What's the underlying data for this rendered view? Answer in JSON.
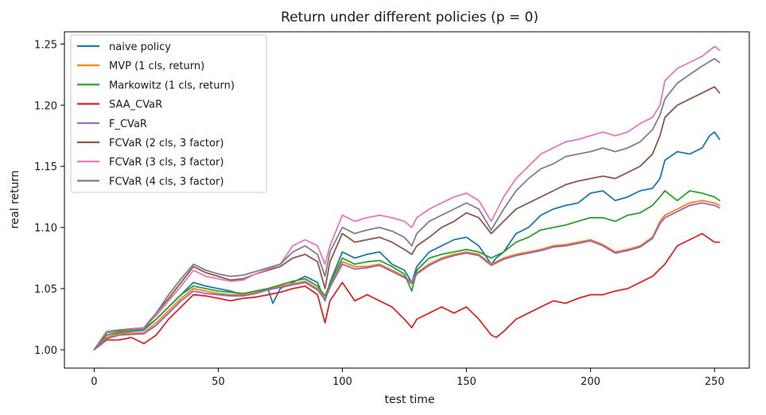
{
  "chart_data": {
    "type": "line",
    "title": "Return under different policies (p = 0)",
    "xlabel": "test time",
    "ylabel": "real return",
    "xlim": [
      -12,
      264
    ],
    "ylim": [
      0.985,
      1.26
    ],
    "xticks": [
      0,
      50,
      100,
      150,
      200,
      250
    ],
    "yticks": [
      1.0,
      1.05,
      1.1,
      1.15,
      1.2,
      1.25
    ],
    "ytick_labels": [
      "1.00",
      "1.05",
      "1.10",
      "1.15",
      "1.20",
      "1.25"
    ],
    "legend_position": "top-left",
    "grid": false,
    "series": [
      {
        "name": "naive policy",
        "color": "#1f77b4",
        "x": [
          0,
          5,
          10,
          20,
          25,
          30,
          35,
          40,
          45,
          50,
          55,
          60,
          65,
          70,
          72,
          75,
          80,
          85,
          90,
          93,
          95,
          100,
          105,
          110,
          115,
          120,
          125,
          128,
          130,
          135,
          140,
          145,
          150,
          155,
          160,
          162,
          165,
          170,
          175,
          180,
          185,
          190,
          195,
          200,
          205,
          210,
          215,
          220,
          225,
          228,
          230,
          235,
          240,
          245,
          248,
          250,
          252
        ],
        "y": [
          1.0,
          1.012,
          1.014,
          1.016,
          1.025,
          1.035,
          1.045,
          1.055,
          1.052,
          1.05,
          1.048,
          1.045,
          1.048,
          1.05,
          1.038,
          1.05,
          1.055,
          1.06,
          1.055,
          1.04,
          1.055,
          1.08,
          1.075,
          1.078,
          1.08,
          1.07,
          1.065,
          1.055,
          1.068,
          1.08,
          1.085,
          1.09,
          1.092,
          1.085,
          1.07,
          1.075,
          1.08,
          1.095,
          1.1,
          1.11,
          1.115,
          1.118,
          1.12,
          1.128,
          1.13,
          1.122,
          1.125,
          1.13,
          1.132,
          1.14,
          1.155,
          1.162,
          1.16,
          1.165,
          1.175,
          1.178,
          1.172
        ]
      },
      {
        "name": "MVP (1 cls, return)",
        "color": "#ff7f0e",
        "x": [
          0,
          5,
          10,
          20,
          25,
          30,
          35,
          40,
          45,
          50,
          55,
          60,
          65,
          70,
          75,
          80,
          85,
          90,
          93,
          95,
          100,
          105,
          110,
          115,
          120,
          125,
          128,
          130,
          135,
          140,
          145,
          150,
          155,
          160,
          165,
          170,
          175,
          180,
          185,
          190,
          195,
          200,
          205,
          210,
          215,
          220,
          225,
          228,
          230,
          235,
          240,
          245,
          250,
          252
        ],
        "y": [
          1.0,
          1.01,
          1.013,
          1.014,
          1.022,
          1.032,
          1.042,
          1.05,
          1.048,
          1.046,
          1.045,
          1.045,
          1.047,
          1.05,
          1.052,
          1.054,
          1.056,
          1.05,
          1.042,
          1.052,
          1.072,
          1.068,
          1.068,
          1.07,
          1.065,
          1.06,
          1.055,
          1.063,
          1.07,
          1.075,
          1.078,
          1.08,
          1.078,
          1.07,
          1.075,
          1.078,
          1.08,
          1.082,
          1.085,
          1.086,
          1.088,
          1.09,
          1.086,
          1.08,
          1.082,
          1.085,
          1.092,
          1.105,
          1.11,
          1.115,
          1.12,
          1.122,
          1.12,
          1.118
        ]
      },
      {
        "name": "Markowitz (1 cls, return)",
        "color": "#2ca02c",
        "x": [
          0,
          5,
          10,
          20,
          25,
          30,
          35,
          40,
          45,
          50,
          55,
          60,
          65,
          70,
          75,
          80,
          85,
          90,
          93,
          95,
          100,
          105,
          110,
          115,
          120,
          125,
          128,
          130,
          135,
          140,
          145,
          150,
          155,
          160,
          165,
          170,
          175,
          180,
          185,
          190,
          195,
          200,
          205,
          210,
          215,
          220,
          225,
          228,
          230,
          235,
          240,
          245,
          250,
          252
        ],
        "y": [
          1.0,
          1.012,
          1.014,
          1.017,
          1.025,
          1.035,
          1.045,
          1.052,
          1.05,
          1.048,
          1.047,
          1.046,
          1.048,
          1.05,
          1.053,
          1.056,
          1.058,
          1.052,
          1.044,
          1.054,
          1.075,
          1.07,
          1.072,
          1.073,
          1.068,
          1.062,
          1.048,
          1.065,
          1.075,
          1.078,
          1.08,
          1.082,
          1.08,
          1.075,
          1.08,
          1.088,
          1.092,
          1.098,
          1.1,
          1.102,
          1.105,
          1.108,
          1.108,
          1.105,
          1.11,
          1.112,
          1.118,
          1.125,
          1.13,
          1.122,
          1.13,
          1.128,
          1.125,
          1.122
        ]
      },
      {
        "name": "SAA_CVaR",
        "color": "#d62728",
        "x": [
          0,
          5,
          10,
          15,
          20,
          25,
          30,
          35,
          40,
          45,
          50,
          55,
          60,
          65,
          70,
          75,
          80,
          85,
          90,
          93,
          95,
          100,
          105,
          110,
          115,
          120,
          125,
          128,
          130,
          135,
          140,
          145,
          150,
          155,
          160,
          162,
          165,
          170,
          175,
          180,
          185,
          190,
          195,
          200,
          205,
          210,
          215,
          220,
          225,
          230,
          235,
          240,
          245,
          250,
          252
        ],
        "y": [
          1.0,
          1.008,
          1.008,
          1.01,
          1.005,
          1.012,
          1.025,
          1.035,
          1.045,
          1.044,
          1.042,
          1.04,
          1.042,
          1.043,
          1.045,
          1.047,
          1.05,
          1.052,
          1.045,
          1.022,
          1.04,
          1.055,
          1.04,
          1.045,
          1.04,
          1.035,
          1.025,
          1.018,
          1.025,
          1.03,
          1.035,
          1.03,
          1.035,
          1.025,
          1.012,
          1.01,
          1.015,
          1.025,
          1.03,
          1.035,
          1.04,
          1.038,
          1.042,
          1.045,
          1.045,
          1.048,
          1.05,
          1.055,
          1.06,
          1.07,
          1.085,
          1.09,
          1.095,
          1.088,
          1.088
        ]
      },
      {
        "name": "F_CVaR",
        "color": "#9467bd",
        "x": [
          0,
          5,
          10,
          20,
          25,
          30,
          35,
          40,
          45,
          50,
          55,
          60,
          65,
          70,
          75,
          80,
          85,
          90,
          93,
          95,
          100,
          105,
          110,
          115,
          120,
          125,
          128,
          130,
          135,
          140,
          145,
          150,
          155,
          160,
          165,
          170,
          175,
          180,
          185,
          190,
          195,
          200,
          205,
          210,
          215,
          220,
          225,
          228,
          230,
          235,
          240,
          245,
          250,
          252
        ],
        "y": [
          1.0,
          1.009,
          1.012,
          1.013,
          1.02,
          1.03,
          1.04,
          1.048,
          1.046,
          1.045,
          1.044,
          1.044,
          1.046,
          1.049,
          1.051,
          1.053,
          1.055,
          1.049,
          1.041,
          1.051,
          1.07,
          1.066,
          1.067,
          1.069,
          1.064,
          1.059,
          1.054,
          1.062,
          1.069,
          1.074,
          1.077,
          1.079,
          1.077,
          1.069,
          1.074,
          1.077,
          1.079,
          1.081,
          1.084,
          1.085,
          1.087,
          1.089,
          1.085,
          1.079,
          1.081,
          1.084,
          1.091,
          1.103,
          1.108,
          1.113,
          1.118,
          1.12,
          1.118,
          1.116
        ]
      },
      {
        "name": "FCVaR (2 cls, 3 factor)",
        "color": "#8c564b",
        "x": [
          0,
          5,
          10,
          20,
          25,
          30,
          35,
          40,
          45,
          50,
          55,
          60,
          65,
          70,
          75,
          80,
          85,
          90,
          93,
          95,
          100,
          105,
          110,
          115,
          120,
          125,
          128,
          130,
          135,
          140,
          145,
          150,
          155,
          160,
          165,
          170,
          175,
          180,
          185,
          190,
          195,
          200,
          205,
          210,
          215,
          220,
          225,
          228,
          230,
          235,
          240,
          245,
          250,
          252
        ],
        "y": [
          1.0,
          1.015,
          1.016,
          1.018,
          1.03,
          1.042,
          1.055,
          1.068,
          1.063,
          1.06,
          1.057,
          1.058,
          1.062,
          1.065,
          1.068,
          1.075,
          1.078,
          1.072,
          1.05,
          1.072,
          1.095,
          1.088,
          1.09,
          1.092,
          1.088,
          1.082,
          1.078,
          1.085,
          1.092,
          1.1,
          1.105,
          1.112,
          1.108,
          1.095,
          1.105,
          1.115,
          1.12,
          1.125,
          1.13,
          1.135,
          1.138,
          1.14,
          1.142,
          1.14,
          1.145,
          1.15,
          1.16,
          1.175,
          1.19,
          1.2,
          1.205,
          1.21,
          1.215,
          1.21
        ]
      },
      {
        "name": "FCVaR (3 cls, 3 factor)",
        "color": "#e377c2",
        "x": [
          0,
          5,
          10,
          20,
          25,
          30,
          35,
          40,
          45,
          50,
          55,
          60,
          65,
          70,
          75,
          80,
          85,
          90,
          93,
          95,
          100,
          105,
          110,
          115,
          120,
          125,
          128,
          130,
          135,
          140,
          145,
          150,
          155,
          160,
          165,
          170,
          175,
          180,
          185,
          190,
          195,
          200,
          205,
          210,
          215,
          220,
          225,
          228,
          230,
          235,
          240,
          245,
          250,
          252
        ],
        "y": [
          1.0,
          1.015,
          1.015,
          1.018,
          1.028,
          1.04,
          1.052,
          1.065,
          1.06,
          1.058,
          1.056,
          1.057,
          1.062,
          1.066,
          1.07,
          1.085,
          1.09,
          1.085,
          1.07,
          1.085,
          1.11,
          1.105,
          1.108,
          1.11,
          1.108,
          1.105,
          1.1,
          1.108,
          1.115,
          1.12,
          1.125,
          1.128,
          1.122,
          1.105,
          1.125,
          1.14,
          1.15,
          1.16,
          1.165,
          1.17,
          1.172,
          1.175,
          1.178,
          1.175,
          1.178,
          1.185,
          1.19,
          1.2,
          1.22,
          1.23,
          1.235,
          1.24,
          1.248,
          1.245
        ]
      },
      {
        "name": "FCVaR (4 cls, 3 factor)",
        "color": "#7f7f7f",
        "x": [
          0,
          5,
          10,
          20,
          25,
          30,
          35,
          40,
          45,
          50,
          55,
          60,
          65,
          70,
          75,
          80,
          85,
          90,
          93,
          95,
          100,
          105,
          110,
          115,
          120,
          125,
          128,
          130,
          135,
          140,
          145,
          150,
          155,
          160,
          165,
          170,
          175,
          180,
          185,
          190,
          195,
          200,
          205,
          210,
          215,
          220,
          225,
          228,
          230,
          235,
          240,
          245,
          250,
          252
        ],
        "y": [
          1.0,
          1.014,
          1.015,
          1.017,
          1.03,
          1.045,
          1.058,
          1.07,
          1.065,
          1.062,
          1.06,
          1.061,
          1.064,
          1.067,
          1.07,
          1.08,
          1.085,
          1.078,
          1.06,
          1.08,
          1.1,
          1.095,
          1.098,
          1.1,
          1.097,
          1.092,
          1.085,
          1.095,
          1.105,
          1.11,
          1.115,
          1.12,
          1.115,
          1.098,
          1.115,
          1.13,
          1.14,
          1.148,
          1.152,
          1.158,
          1.16,
          1.162,
          1.165,
          1.162,
          1.165,
          1.17,
          1.18,
          1.192,
          1.205,
          1.218,
          1.225,
          1.232,
          1.238,
          1.235
        ]
      }
    ]
  }
}
